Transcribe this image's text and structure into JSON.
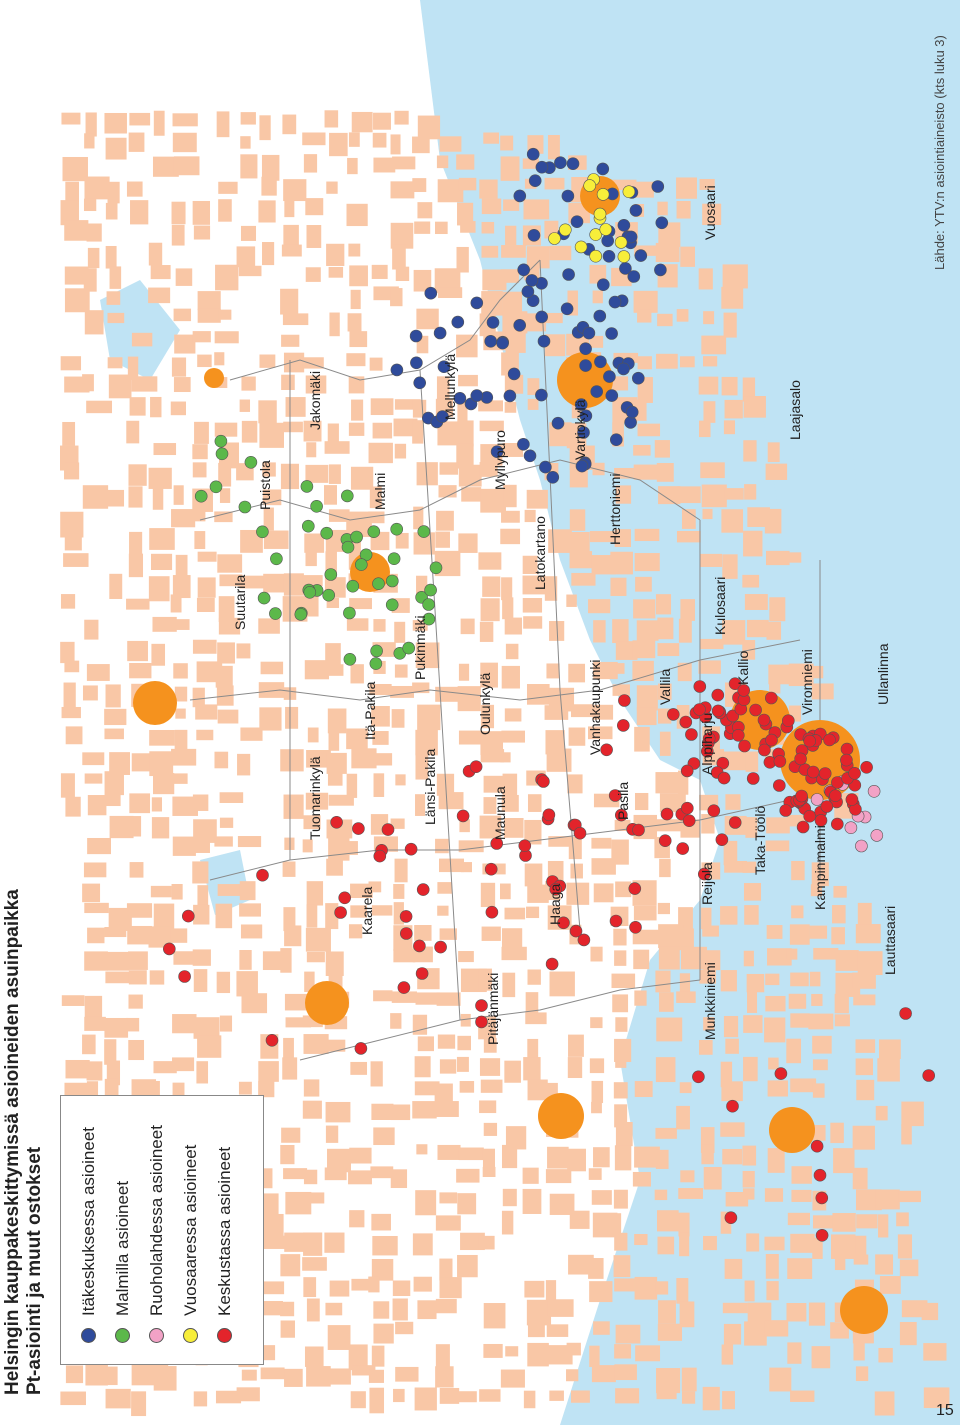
{
  "title": {
    "line1": "Helsingin kauppakeskittymissä asioineiden asuinpaikka",
    "line2": "Pt-asiointi ja muut ostokset"
  },
  "legend": [
    {
      "label": "Itäkeskuksessa asioineet",
      "color": "#2f4b9b"
    },
    {
      "label": "Malmilla asioineet",
      "color": "#5cb84a"
    },
    {
      "label": "Ruoholahdessa asioineet",
      "color": "#f2a2c6"
    },
    {
      "label": "Vuosaaressa asioineet",
      "color": "#f7ee3a"
    },
    {
      "label": "Keskustassa asioineet",
      "color": "#e3242b"
    }
  ],
  "source": "Lähde: YTV:n asiointiaineisto (kts luku 3)",
  "page_number": "15",
  "colors": {
    "sea": "#bfe3f4",
    "land": "#ffffff",
    "built": "#f9c7a6",
    "center": "#f5921e",
    "border": "#8a8a8a",
    "itakeskus": "#2f4b9b",
    "malmi": "#5cb84a",
    "ruoholahti": "#f2a2c6",
    "vuosaari": "#f7ee3a",
    "keskusta": "#e3242b"
  },
  "places": [
    "Suutarila",
    "Puistola",
    "Jakomäki",
    "Malmi",
    "Mellunkylä",
    "Myllypuro",
    "Vartiokylä",
    "Vuosaari",
    "Laajasalo",
    "Herttoniemi",
    "Latokartano",
    "Pukinmäki",
    "Itä-Pakila",
    "Tuomarinkylä",
    "Länsi-Pakila",
    "Oulunkylä",
    "Vanhakaupunki",
    "Kulosaari",
    "Vallila",
    "Kallio",
    "Vironniemi",
    "Ullanlinna",
    "Alppiharju",
    "Pasila",
    "Maunula",
    "Kaarela",
    "Haaga",
    "Reijola",
    "Taka-Töölö",
    "Kampinmalmi",
    "Pitäjänmäki",
    "Munkkiniemi",
    "Lauttasaari"
  ]
}
